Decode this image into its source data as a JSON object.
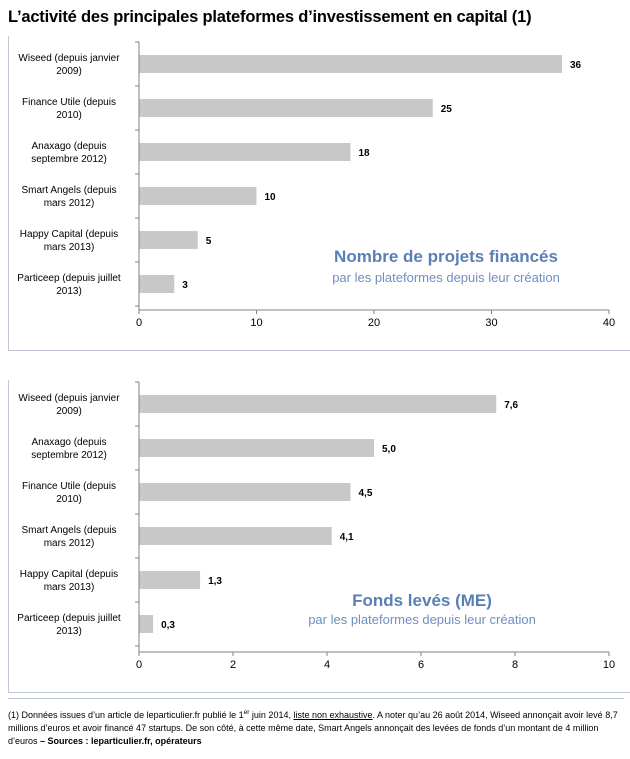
{
  "title": "L’activité des principales plateformes d’investissement en capital (1)",
  "chart_data": [
    {
      "type": "bar",
      "orientation": "horizontal",
      "title": "Nombre de projets financés",
      "subtitle": "par les plateformes  depuis leur création",
      "categories": [
        [
          "Wiseed (depuis janvier",
          "2009)"
        ],
        [
          "Finance Utile (depuis",
          "2010)"
        ],
        [
          "Anaxago (depuis",
          "septembre 2012)"
        ],
        [
          "Smart Angels (depuis",
          "mars 2012)"
        ],
        [
          "Happy Capital (depuis",
          "mars 2013)"
        ],
        [
          "Particeep (depuis juillet",
          "2013)"
        ]
      ],
      "values": [
        36,
        25,
        18,
        10,
        5,
        3
      ],
      "value_labels": [
        "36",
        "25",
        "18",
        "10",
        "5",
        "3"
      ],
      "xlim": [
        0,
        40
      ],
      "xticks": [
        0,
        10,
        20,
        30,
        40
      ],
      "xtick_labels": [
        "0",
        "10",
        "20",
        "30",
        "40"
      ],
      "bar_color": "#c8c8c8",
      "title_color": "#5a7fb5",
      "subtitle_color": "#6f8fc0",
      "grid": false
    },
    {
      "type": "bar",
      "orientation": "horizontal",
      "title": "Fonds levés (ME)",
      "subtitle": "par les plateformes depuis leur création",
      "categories": [
        [
          "Wiseed (depuis janvier",
          "2009)"
        ],
        [
          "Anaxago (depuis",
          "septembre 2012)"
        ],
        [
          "Finance Utile (depuis",
          "2010)"
        ],
        [
          "Smart Angels (depuis",
          "mars 2012)"
        ],
        [
          "Happy Capital (depuis",
          "mars 2013)"
        ],
        [
          "Particeep (depuis juillet",
          "2013)"
        ]
      ],
      "values": [
        7.6,
        5.0,
        4.5,
        4.1,
        1.3,
        0.3
      ],
      "value_labels": [
        "7,6",
        "5,0",
        "4,5",
        "4,1",
        "1,3",
        "0,3"
      ],
      "xlim": [
        0,
        10
      ],
      "xticks": [
        0,
        2,
        4,
        6,
        8,
        10
      ],
      "xtick_labels": [
        "0",
        "2",
        "4",
        "6",
        "8",
        "10"
      ],
      "bar_color": "#c8c8c8",
      "title_color": "#5a7fb5",
      "subtitle_color": "#6f8fc0",
      "grid": false
    }
  ],
  "footnote": {
    "p1": "(1) Données issues d’un article de leparticulier.fr publié le 1",
    "sup": "er",
    "p2": " juin 2014, ",
    "underlined": "liste non exhaustive",
    "p3": ". A noter qu’au 26 août 2014, Wiseed annonçait avoir levé 8,7 millions d’euros et avoir financé 47 startups. De son côté, à cette même date, Smart Angels annonçait des levées de fonds d’un montant de 4 million d’euros",
    "bold": " – Sources : leparticulier.fr, opérateurs"
  }
}
